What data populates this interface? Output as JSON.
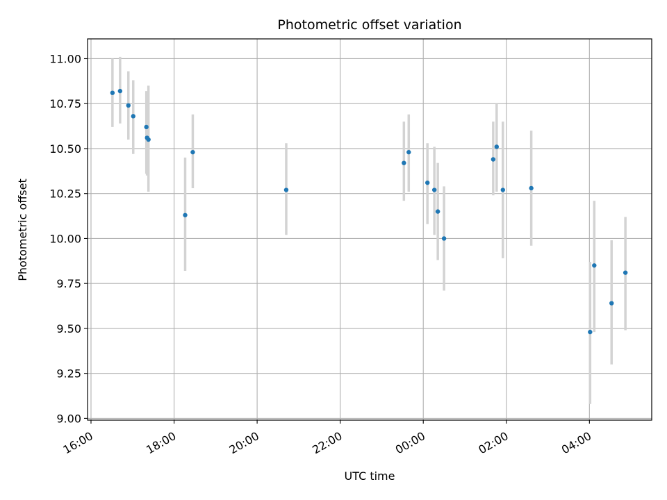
{
  "chart_data": {
    "type": "scatter",
    "title": "Photometric offset variation",
    "xlabel": "UTC time",
    "ylabel": "Photometric offset",
    "x_unit": "UTC time (HH:MM)",
    "xlim": [
      "15:55",
      "05:30"
    ],
    "ylim": [
      8.99,
      11.11
    ],
    "grid": true,
    "x_ticks": [
      "16:00",
      "18:00",
      "20:00",
      "22:00",
      "00:00",
      "02:00",
      "04:00"
    ],
    "y_ticks": [
      "9.00",
      "9.25",
      "9.50",
      "9.75",
      "10.00",
      "10.25",
      "10.50",
      "10.75",
      "11.00"
    ],
    "marker_color": "#1f77b4",
    "errorbar_color": "#d3d3d3",
    "points": [
      {
        "x": "16:31",
        "y": 10.81,
        "ylo": 10.62,
        "yhi": 11.0
      },
      {
        "x": "16:42",
        "y": 10.82,
        "ylo": 10.64,
        "yhi": 11.01
      },
      {
        "x": "16:54",
        "y": 10.74,
        "ylo": 10.55,
        "yhi": 10.93
      },
      {
        "x": "17:01",
        "y": 10.68,
        "ylo": 10.47,
        "yhi": 10.88
      },
      {
        "x": "17:20",
        "y": 10.62,
        "ylo": 10.36,
        "yhi": 10.82
      },
      {
        "x": "17:21",
        "y": 10.56,
        "ylo": 10.35,
        "yhi": 10.77
      },
      {
        "x": "17:23",
        "y": 10.55,
        "ylo": 10.26,
        "yhi": 10.85
      },
      {
        "x": "18:16",
        "y": 10.13,
        "ylo": 9.82,
        "yhi": 10.45
      },
      {
        "x": "18:27",
        "y": 10.48,
        "ylo": 10.28,
        "yhi": 10.69
      },
      {
        "x": "20:42",
        "y": 10.27,
        "ylo": 10.02,
        "yhi": 10.53
      },
      {
        "x": "23:32",
        "y": 10.42,
        "ylo": 10.21,
        "yhi": 10.65
      },
      {
        "x": "23:39",
        "y": 10.48,
        "ylo": 10.26,
        "yhi": 10.69
      },
      {
        "x": "00:06",
        "y": 10.31,
        "ylo": 10.08,
        "yhi": 10.53
      },
      {
        "x": "00:16",
        "y": 10.27,
        "ylo": 10.02,
        "yhi": 10.51
      },
      {
        "x": "00:21",
        "y": 10.15,
        "ylo": 9.88,
        "yhi": 10.42
      },
      {
        "x": "00:30",
        "y": 10.0,
        "ylo": 9.71,
        "yhi": 10.29
      },
      {
        "x": "01:41",
        "y": 10.44,
        "ylo": 10.24,
        "yhi": 10.65
      },
      {
        "x": "01:46",
        "y": 10.51,
        "ylo": 10.26,
        "yhi": 10.75
      },
      {
        "x": "01:55",
        "y": 10.27,
        "ylo": 9.89,
        "yhi": 10.65
      },
      {
        "x": "02:36",
        "y": 10.28,
        "ylo": 9.96,
        "yhi": 10.6
      },
      {
        "x": "04:01",
        "y": 9.48,
        "ylo": 9.08,
        "yhi": 9.87
      },
      {
        "x": "04:07",
        "y": 9.85,
        "ylo": 9.48,
        "yhi": 10.21
      },
      {
        "x": "04:32",
        "y": 9.64,
        "ylo": 9.3,
        "yhi": 9.99
      },
      {
        "x": "04:52",
        "y": 9.81,
        "ylo": 9.49,
        "yhi": 10.12
      }
    ]
  }
}
